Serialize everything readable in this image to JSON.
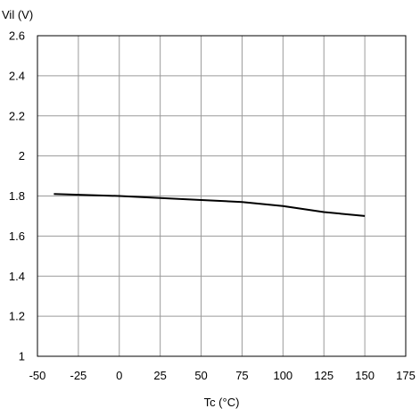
{
  "chart_data": {
    "type": "line",
    "title": "",
    "xlabel": "Tc (°C)",
    "ylabel": "Vil (V)",
    "xlim": [
      -50,
      175
    ],
    "ylim": [
      1,
      2.6
    ],
    "x_ticks": [
      -50,
      -25,
      0,
      25,
      50,
      75,
      100,
      125,
      150,
      175
    ],
    "y_ticks": [
      1,
      1.2,
      1.4,
      1.6,
      1.8,
      2,
      2.2,
      2.4,
      2.6
    ],
    "x_tick_labels": [
      "-50",
      "-25",
      "0",
      "25",
      "50",
      "75",
      "100",
      "125",
      "150",
      "175"
    ],
    "y_tick_labels": [
      "1",
      "1.2",
      "1.4",
      "1.6",
      "1.8",
      "2",
      "2.2",
      "2.4",
      "2.6"
    ],
    "grid": true,
    "legend": "none",
    "series": [
      {
        "color": "#000000",
        "x": [
          -40,
          0,
          25,
          50,
          75,
          100,
          125,
          150
        ],
        "y": [
          1.81,
          1.8,
          1.79,
          1.78,
          1.77,
          1.75,
          1.72,
          1.7
        ]
      }
    ]
  }
}
